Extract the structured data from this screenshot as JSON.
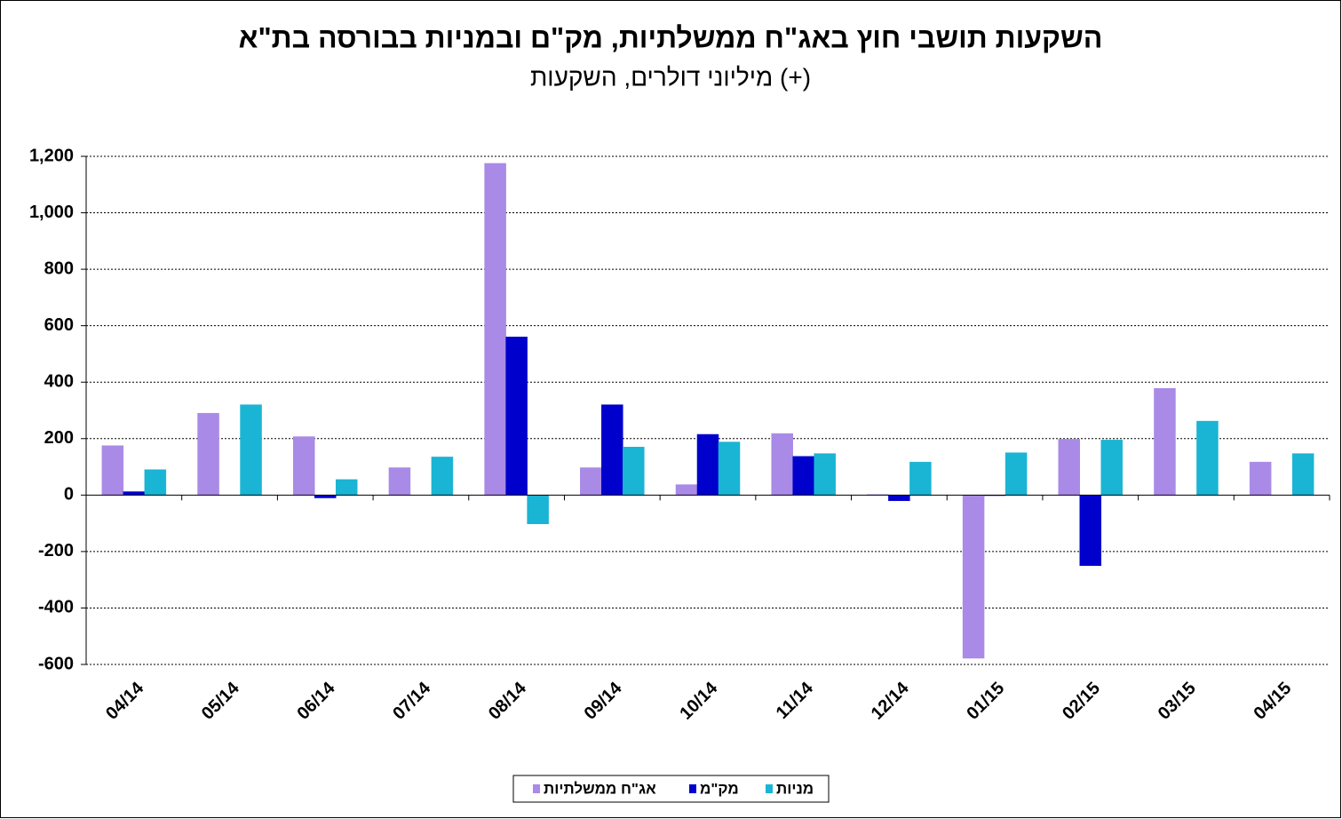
{
  "chart_data": {
    "type": "bar",
    "title": "השקעות תושבי חוץ באג\"ח ממשלתיות, מק\"ם ובמניות בבורסה בת\"א",
    "subtitle": "מיליוני דולרים, השקעות (+)",
    "categories": [
      "04/14",
      "05/14",
      "06/14",
      "07/14",
      "08/14",
      "09/14",
      "10/14",
      "11/14",
      "12/14",
      "01/15",
      "02/15",
      "03/15",
      "04/15"
    ],
    "series": [
      {
        "name": "אג\"ח ממשלתיות",
        "color": "#a98ae6",
        "values": [
          175,
          290,
          207,
          97,
          1175,
          97,
          37,
          218,
          2,
          -578,
          198,
          378,
          117
        ]
      },
      {
        "name": "מק\"מ",
        "color": "#0000cc",
        "values": [
          12,
          0,
          -10,
          0,
          560,
          320,
          215,
          137,
          -20,
          -2,
          -250,
          0,
          0
        ]
      },
      {
        "name": "מניות",
        "color": "#1ab4d4",
        "values": [
          90,
          320,
          55,
          135,
          -102,
          170,
          188,
          147,
          117,
          150,
          195,
          262,
          147
        ]
      }
    ],
    "ylim": [
      -600,
      1200
    ],
    "yticks": [
      -600,
      -400,
      -200,
      0,
      200,
      400,
      600,
      800,
      {
        "value": 1000,
        "label": "1,000"
      },
      {
        "value": 1200,
        "label": "1,200"
      }
    ],
    "grid": true
  }
}
